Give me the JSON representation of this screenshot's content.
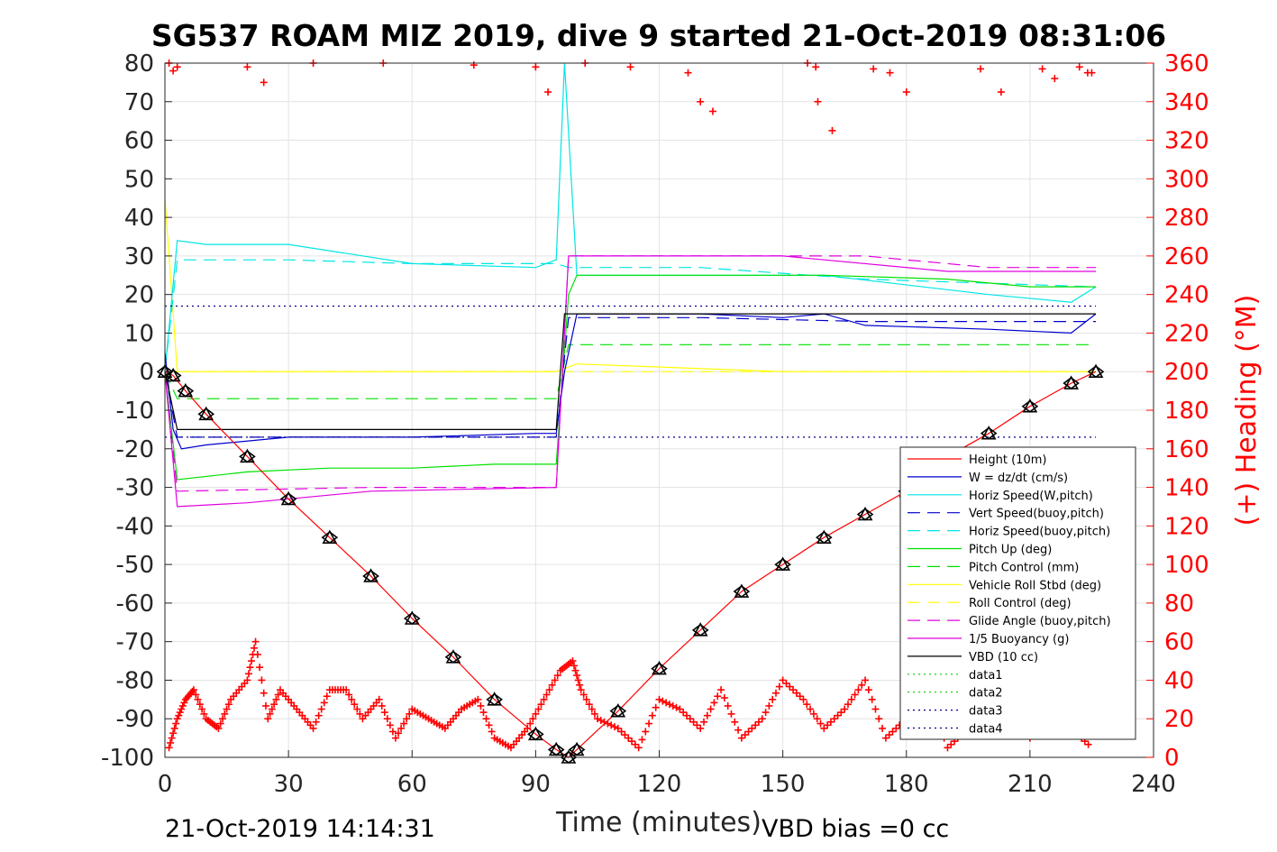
{
  "chart_data": {
    "type": "line",
    "title": "SG537 ROAM MIZ 2019, dive 9 started 21-Oct-2019 08:31:06",
    "xlabel": "Time (minutes)",
    "ylabel_right": "(+) Heading (°M)",
    "xlim": [
      0,
      240
    ],
    "ylim": [
      -100,
      80
    ],
    "ylim_right": [
      0,
      360
    ],
    "x_ticks": [
      "0",
      "30",
      "60",
      "90",
      "120",
      "150",
      "180",
      "210",
      "240"
    ],
    "y_ticks": [
      "80",
      "70",
      "60",
      "50",
      "40",
      "30",
      "20",
      "10",
      "0",
      "-10",
      "-20",
      "-30",
      "-40",
      "-50",
      "-60",
      "-70",
      "-80",
      "-90",
      "-100"
    ],
    "y_ticks_right": [
      "360",
      "340",
      "320",
      "300",
      "280",
      "260",
      "240",
      "220",
      "200",
      "180",
      "160",
      "140",
      "120",
      "100",
      "80",
      "60",
      "40",
      "20",
      "0"
    ],
    "grid": true,
    "legend_position": "lower-right",
    "footer_left": "21-Oct-2019 14:14:31",
    "footer_right": "VBD bias =0 cc",
    "colors": {
      "height": "#ff0000",
      "w": "#0000cc",
      "horiz_w": "#00e5e5",
      "vert_buoy": "#0000cc",
      "horiz_buoy": "#00e5e5",
      "pitch": "#00e000",
      "pitch_ctl": "#00e000",
      "roll": "#ffff00",
      "roll_ctl": "#ffff00",
      "glide": "#e000e0",
      "buoy": "#e000e0",
      "vbd": "#000000",
      "heading": "#ff0000"
    },
    "series": [
      {
        "name": "Height (10m)",
        "x": [
          0,
          2,
          5,
          10,
          20,
          30,
          40,
          50,
          60,
          70,
          80,
          90,
          95,
          98,
          100,
          110,
          120,
          130,
          140,
          150,
          160,
          170,
          180,
          190,
          200,
          210,
          220,
          226
        ],
        "values": [
          0,
          -1,
          -5,
          -11,
          -22,
          -33,
          -43,
          -53,
          -64,
          -74,
          -85,
          -94,
          -98,
          -100,
          -98,
          -88,
          -77,
          -67,
          -57,
          -50,
          -43,
          -37,
          -31,
          -22,
          -16,
          -9,
          -3,
          0
        ]
      },
      {
        "name": "W = dz/dt (cm/s)",
        "x": [
          0,
          2,
          4,
          10,
          30,
          60,
          90,
          95,
          97,
          100,
          130,
          150,
          160,
          170,
          200,
          220,
          226
        ],
        "values": [
          5,
          -15,
          -20,
          -19,
          -17,
          -17,
          -16,
          -16,
          0,
          15,
          15,
          14,
          15,
          12,
          11,
          10,
          15
        ]
      },
      {
        "name": "Horiz Speed(W,pitch)",
        "x": [
          0,
          3,
          10,
          30,
          60,
          90,
          95,
          97,
          100,
          130,
          160,
          200,
          220,
          226
        ],
        "values": [
          0,
          34,
          33,
          33,
          28,
          27,
          29,
          80,
          25,
          25,
          25,
          20,
          18,
          22
        ]
      },
      {
        "name": "Vert Speed(buoy,pitch)",
        "x": [
          0,
          3,
          30,
          60,
          95,
          98,
          130,
          170,
          226
        ],
        "values": [
          0,
          -17,
          -17,
          -17,
          -17,
          14,
          14,
          13,
          13
        ]
      },
      {
        "name": "Horiz Speed(buoy,pitch)",
        "x": [
          0,
          3,
          30,
          60,
          95,
          98,
          130,
          170,
          226
        ],
        "values": [
          0,
          29,
          29,
          28,
          28,
          27,
          27,
          24,
          22
        ]
      },
      {
        "name": "Pitch Up (deg)",
        "x": [
          0,
          3,
          20,
          40,
          60,
          80,
          95,
          98,
          100,
          130,
          160,
          190,
          210,
          226
        ],
        "values": [
          0,
          -28,
          -26,
          -25,
          -25,
          -24,
          -24,
          20,
          25,
          25,
          25,
          24,
          22,
          22
        ]
      },
      {
        "name": "Pitch Control (mm)",
        "x": [
          0,
          3,
          50,
          95,
          98,
          150,
          226
        ],
        "values": [
          0,
          -7,
          -7,
          -7,
          7,
          7,
          7
        ]
      },
      {
        "name": "Vehicle Roll Stbd (deg)",
        "x": [
          0,
          3,
          50,
          95,
          100,
          150,
          226
        ],
        "values": [
          45,
          0,
          0,
          0,
          2,
          0,
          0
        ]
      },
      {
        "name": "Roll Control (deg)",
        "x": [
          0,
          226
        ],
        "values": [
          0,
          0
        ]
      },
      {
        "name": "Glide Angle (buoy,pitch)",
        "x": [
          0,
          3,
          50,
          95,
          98,
          150,
          170,
          200,
          226
        ],
        "values": [
          0,
          -31,
          -30,
          -30,
          30,
          30,
          30,
          27,
          27
        ]
      },
      {
        "name": "1/5 Buoyancy (g)",
        "x": [
          0,
          3,
          20,
          50,
          95,
          98,
          150,
          190,
          226
        ],
        "values": [
          0,
          -35,
          -34,
          -31,
          -30,
          30,
          30,
          26,
          26
        ]
      },
      {
        "name": "VBD (10 cc)",
        "x": [
          0,
          3,
          95,
          97,
          226
        ],
        "values": [
          0,
          -15,
          -15,
          15,
          15
        ]
      },
      {
        "name": "data1",
        "x": [],
        "values": []
      },
      {
        "name": "data2",
        "x": [],
        "values": []
      },
      {
        "name": "data3",
        "x": [
          0,
          226
        ],
        "values": [
          17,
          17
        ]
      },
      {
        "name": "data4",
        "x": [
          0,
          226
        ],
        "values": [
          -17,
          -17
        ]
      }
    ],
    "heading": {
      "axis": "right",
      "x": [
        1,
        3,
        5,
        7,
        10,
        13,
        16,
        20,
        22,
        25,
        28,
        32,
        36,
        40,
        44,
        48,
        52,
        56,
        60,
        64,
        68,
        72,
        76,
        80,
        84,
        88,
        92,
        96,
        99,
        101,
        105,
        110,
        115,
        120,
        125,
        130,
        135,
        140,
        145,
        150,
        155,
        160,
        165,
        170,
        175,
        180,
        185,
        190,
        195,
        200,
        205,
        210,
        215,
        220,
        225
      ],
      "values": [
        5,
        20,
        30,
        35,
        20,
        15,
        30,
        40,
        60,
        20,
        35,
        25,
        15,
        35,
        35,
        20,
        30,
        10,
        25,
        20,
        15,
        25,
        30,
        10,
        5,
        15,
        30,
        45,
        50,
        35,
        20,
        15,
        5,
        30,
        25,
        15,
        35,
        10,
        20,
        40,
        30,
        15,
        25,
        40,
        10,
        20,
        35,
        5,
        15,
        30,
        20,
        10,
        25,
        15,
        5
      ]
    },
    "heading_top": {
      "x": [
        1,
        2,
        3,
        20,
        24,
        36,
        53,
        75,
        90,
        93,
        102,
        113,
        127,
        130,
        133,
        156,
        158,
        158.5,
        162,
        172,
        176,
        180,
        198,
        203,
        213,
        216,
        222,
        224,
        225
      ],
      "values": [
        360,
        356,
        358,
        358,
        350,
        360,
        360,
        359,
        358,
        345,
        360,
        358,
        355,
        340,
        335,
        360,
        358,
        340,
        325,
        357,
        355,
        345,
        357,
        345,
        357,
        352,
        358,
        355,
        355
      ]
    }
  }
}
